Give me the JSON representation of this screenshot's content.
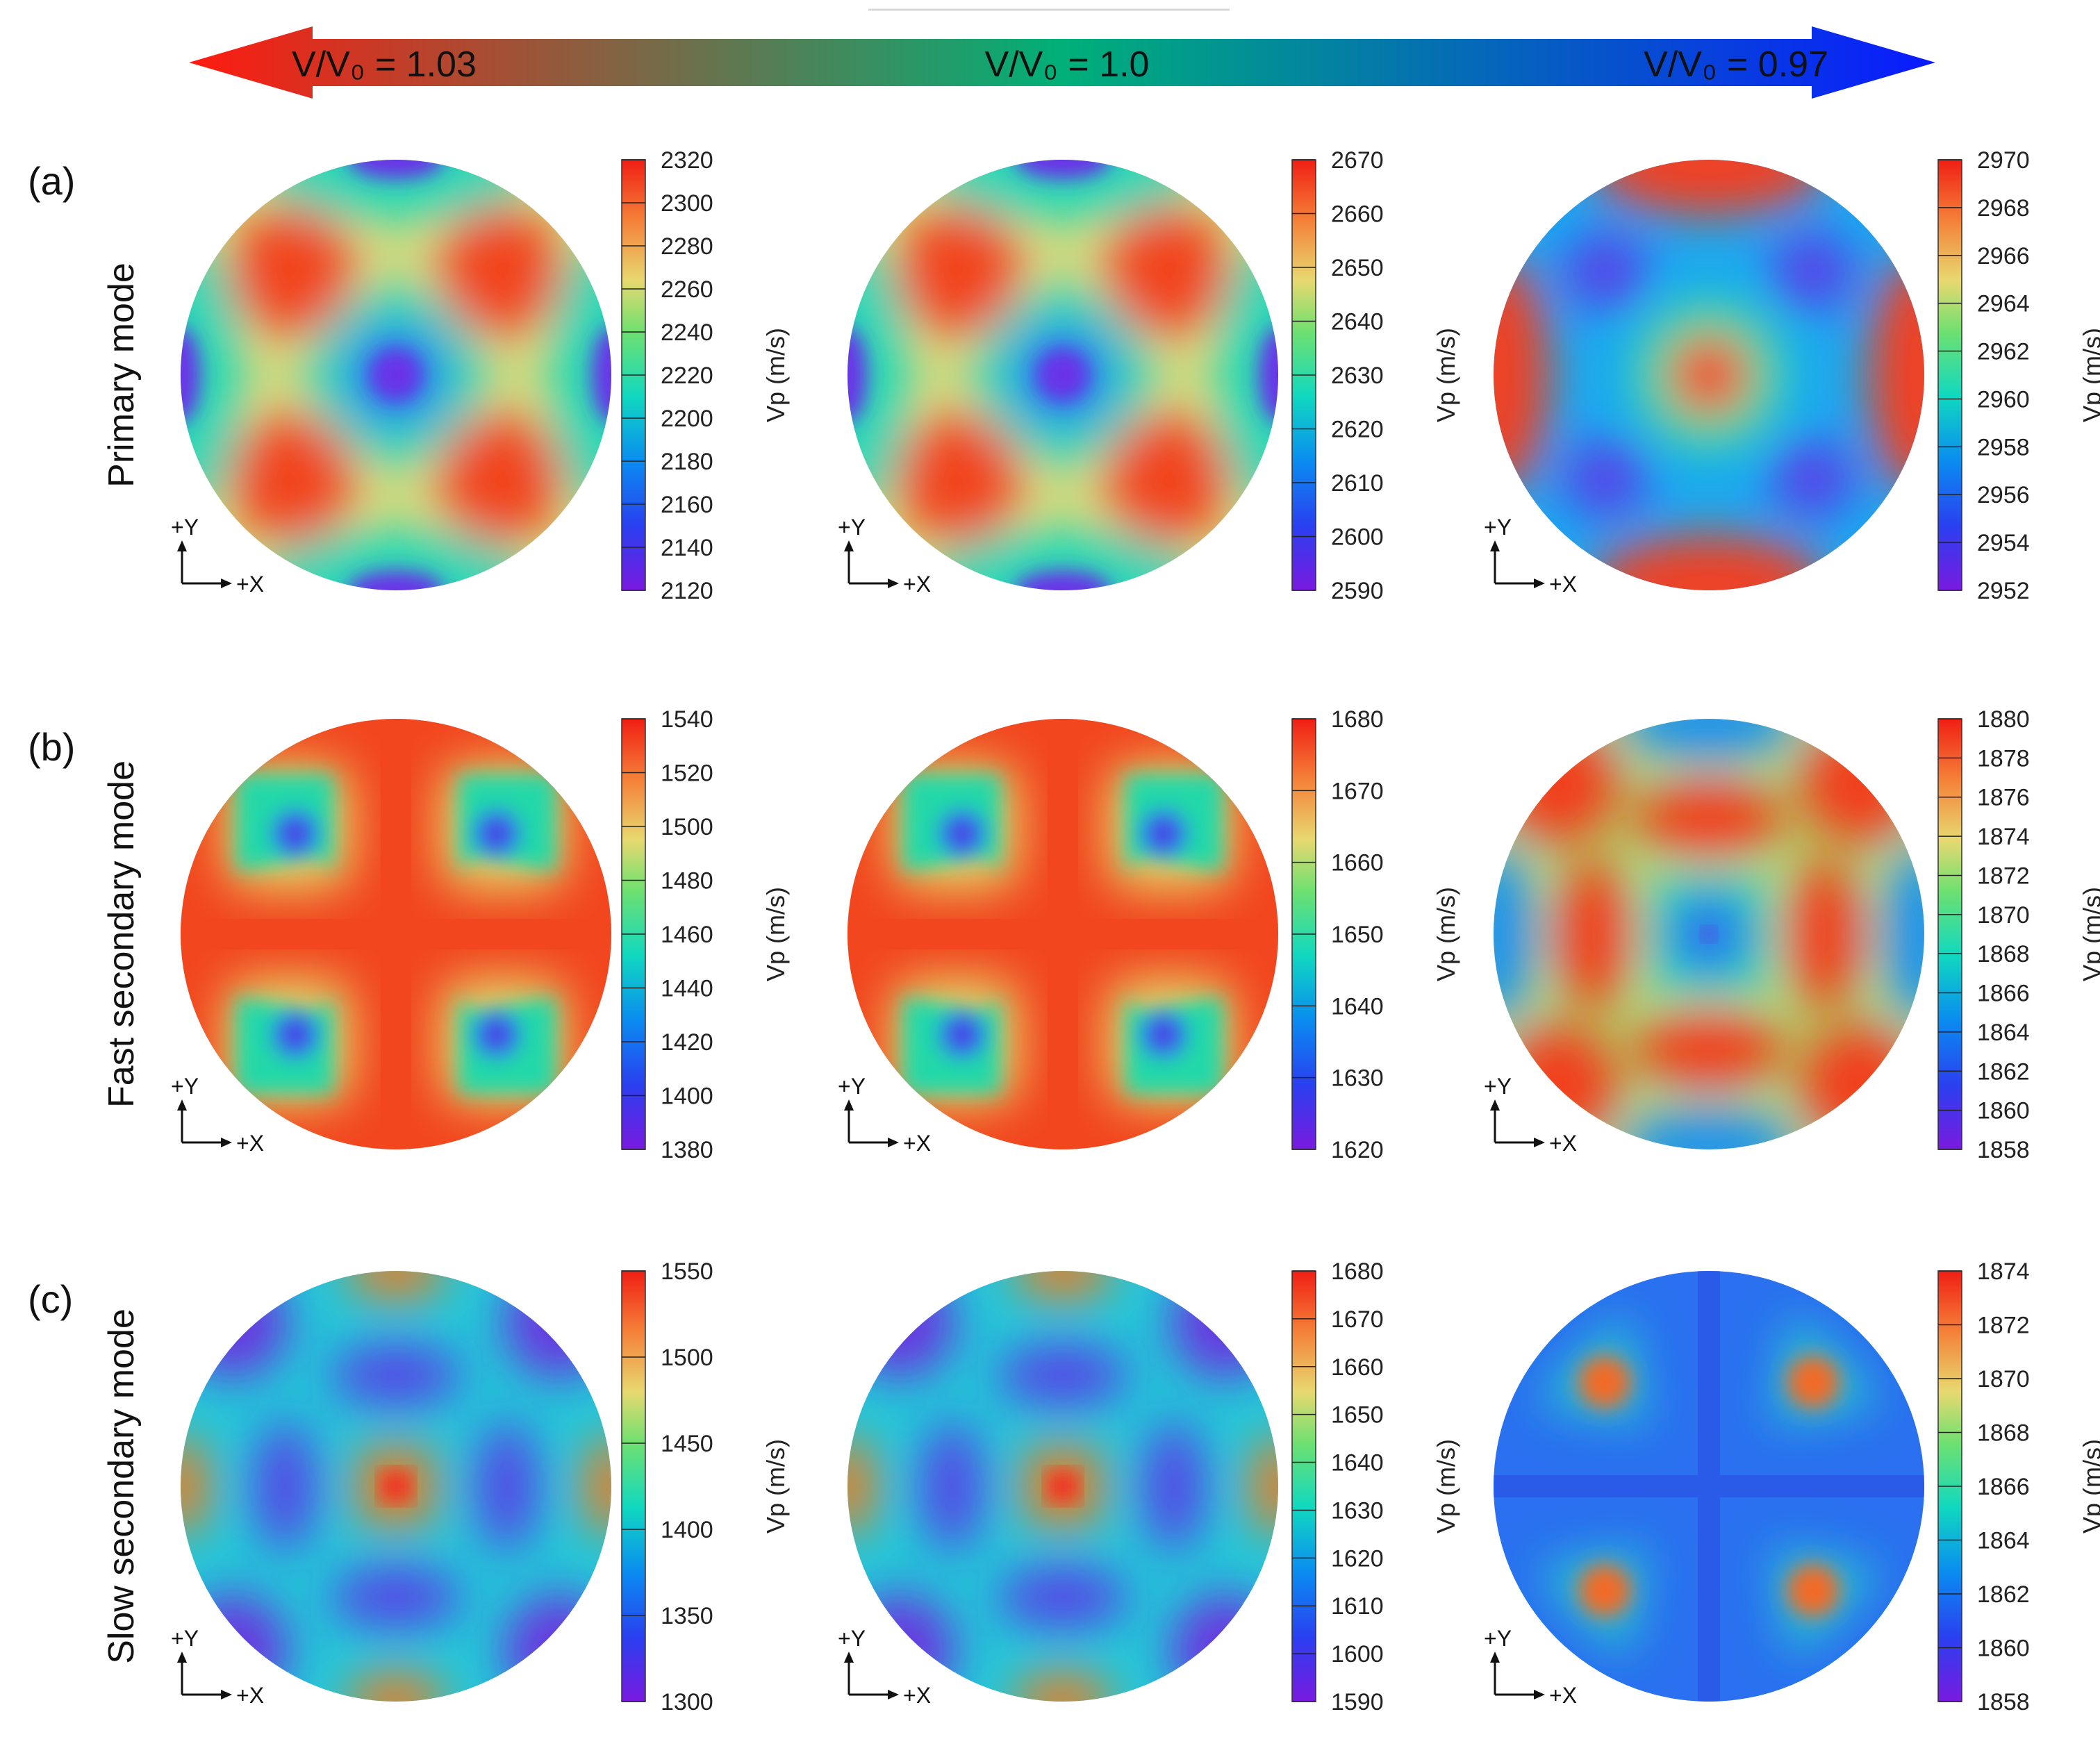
{
  "arrow": {
    "left_label": "V/V₀ = 1.03",
    "center_label": "V/V₀ = 1.0",
    "right_label": "V/V₀ = 0.97",
    "colors": [
      "#ff1a10",
      "#00b078",
      "#0a1aff"
    ]
  },
  "axis_labels": {
    "y": "+Y",
    "x": "+X"
  },
  "colorbar_title": "Vp (m/s)",
  "rows": [
    {
      "id": "a",
      "panel_label": "(a)",
      "row_title": "Primary mode",
      "plots": [
        {
          "pattern": "p1",
          "ticks": [
            "2320",
            "2300",
            "2280",
            "2260",
            "2240",
            "2220",
            "2200",
            "2180",
            "2160",
            "2140",
            "2120"
          ]
        },
        {
          "pattern": "p1",
          "ticks": [
            "2670",
            "2660",
            "2650",
            "2640",
            "2630",
            "2620",
            "2610",
            "2600",
            "2590"
          ]
        },
        {
          "pattern": "p3",
          "ticks": [
            "2970",
            "2968",
            "2966",
            "2964",
            "2962",
            "2960",
            "2958",
            "2956",
            "2954",
            "2952"
          ]
        }
      ]
    },
    {
      "id": "b",
      "panel_label": "(b)",
      "row_title": "Fast secondary mode",
      "plots": [
        {
          "pattern": "fs",
          "ticks": [
            "1540",
            "1520",
            "1500",
            "1480",
            "1460",
            "1440",
            "1420",
            "1400",
            "1380"
          ]
        },
        {
          "pattern": "fs",
          "ticks": [
            "1680",
            "1670",
            "1660",
            "1650",
            "1640",
            "1630",
            "1620"
          ]
        },
        {
          "pattern": "fs3",
          "ticks": [
            "1880",
            "1878",
            "1876",
            "1874",
            "1872",
            "1870",
            "1868",
            "1866",
            "1864",
            "1862",
            "1860",
            "1858"
          ]
        }
      ]
    },
    {
      "id": "c",
      "panel_label": "(c)",
      "row_title": "Slow secondary mode",
      "plots": [
        {
          "pattern": "ss",
          "ticks": [
            "1550",
            "1500",
            "1450",
            "1400",
            "1350",
            "1300"
          ]
        },
        {
          "pattern": "ss",
          "ticks": [
            "1680",
            "1670",
            "1660",
            "1650",
            "1640",
            "1630",
            "1620",
            "1610",
            "1600",
            "1590"
          ]
        },
        {
          "pattern": "ss3",
          "ticks": [
            "1874",
            "1872",
            "1870",
            "1868",
            "1866",
            "1864",
            "1862",
            "1860",
            "1858"
          ]
        }
      ]
    }
  ]
}
